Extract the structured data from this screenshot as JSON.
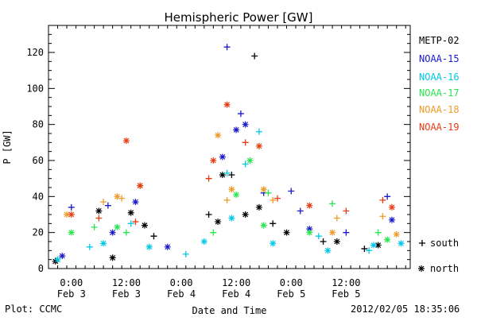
{
  "chart_data": {
    "type": "scatter",
    "title": "Hemispheric Power [GW]",
    "xlabel": "Date and Time",
    "ylabel": "P [GW]",
    "ylim": [
      0,
      135
    ],
    "y_ticks": [
      0,
      20,
      40,
      60,
      80,
      100,
      120
    ],
    "xlim": [
      "2012-02-02T19:00",
      "2012-02-06T02:00"
    ],
    "x_ticks": [
      {
        "time": "2012-02-03T00:00",
        "line1": "0:00",
        "line2": "Feb 3"
      },
      {
        "time": "2012-02-03T12:00",
        "line1": "12:00",
        "line2": "Feb 3"
      },
      {
        "time": "2012-02-04T00:00",
        "line1": "0:00",
        "line2": "Feb 4"
      },
      {
        "time": "2012-02-04T12:00",
        "line1": "12:00",
        "line2": "Feb 4"
      },
      {
        "time": "2012-02-05T00:00",
        "line1": "0:00",
        "line2": "Feb 5"
      },
      {
        "time": "2012-02-05T12:00",
        "line1": "12:00",
        "line2": "Feb 5"
      }
    ],
    "marker_legend": [
      {
        "symbol": "+",
        "label": "south"
      },
      {
        "symbol": "*",
        "label": "north"
      }
    ],
    "series": [
      {
        "name": "METP-02",
        "color": "#000000",
        "south": [
          [
            "2012-02-03T18:00",
            18
          ],
          [
            "2012-02-04T06:00",
            30
          ],
          [
            "2012-02-04T11:00",
            52
          ],
          [
            "2012-02-04T16:00",
            118
          ],
          [
            "2012-02-04T20:00",
            25
          ],
          [
            "2012-02-05T07:00",
            15
          ],
          [
            "2012-02-05T16:00",
            11
          ]
        ],
        "north": [
          [
            "2012-02-02T20:30",
            4
          ],
          [
            "2012-02-03T06:00",
            32
          ],
          [
            "2012-02-03T09:00",
            6
          ],
          [
            "2012-02-03T13:00",
            31
          ],
          [
            "2012-02-03T16:00",
            24
          ],
          [
            "2012-02-04T08:00",
            26
          ],
          [
            "2012-02-04T09:00",
            52
          ],
          [
            "2012-02-04T14:00",
            30
          ],
          [
            "2012-02-04T17:00",
            34
          ],
          [
            "2012-02-04T23:00",
            20
          ],
          [
            "2012-02-05T10:00",
            15
          ],
          [
            "2012-02-05T19:00",
            13
          ]
        ]
      },
      {
        "name": "NOAA-15",
        "color": "#1a1acc",
        "south": [
          [
            "2012-02-03T00:00",
            34
          ],
          [
            "2012-02-03T08:00",
            35
          ],
          [
            "2012-02-04T10:00",
            123
          ],
          [
            "2012-02-04T13:00",
            86
          ],
          [
            "2012-02-04T18:00",
            42
          ],
          [
            "2012-02-05T00:00",
            43
          ],
          [
            "2012-02-05T02:00",
            32
          ],
          [
            "2012-02-05T21:00",
            40
          ],
          [
            "2012-02-05T12:00",
            20
          ]
        ],
        "north": [
          [
            "2012-02-02T22:00",
            7
          ],
          [
            "2012-02-03T09:00",
            20
          ],
          [
            "2012-02-03T14:00",
            37
          ],
          [
            "2012-02-03T21:00",
            12
          ],
          [
            "2012-02-04T09:00",
            62
          ],
          [
            "2012-02-04T12:00",
            77
          ],
          [
            "2012-02-04T14:00",
            80
          ],
          [
            "2012-02-05T04:00",
            22
          ],
          [
            "2012-02-05T22:00",
            27
          ]
        ]
      },
      {
        "name": "NOAA-16",
        "color": "#00c8e6",
        "south": [
          [
            "2012-02-03T04:00",
            12
          ],
          [
            "2012-02-03T13:00",
            25
          ],
          [
            "2012-02-04T01:00",
            8
          ],
          [
            "2012-02-04T10:00",
            53
          ],
          [
            "2012-02-04T14:00",
            58
          ],
          [
            "2012-02-04T17:00",
            76
          ],
          [
            "2012-02-05T06:00",
            18
          ],
          [
            "2012-02-05T17:00",
            10
          ]
        ],
        "north": [
          [
            "2012-02-02T21:00",
            5
          ],
          [
            "2012-02-03T07:00",
            14
          ],
          [
            "2012-02-03T17:00",
            12
          ],
          [
            "2012-02-04T05:00",
            15
          ],
          [
            "2012-02-04T11:00",
            28
          ],
          [
            "2012-02-04T20:00",
            14
          ],
          [
            "2012-02-05T08:00",
            10
          ],
          [
            "2012-02-05T18:00",
            13
          ],
          [
            "2012-02-06T00:00",
            14
          ]
        ]
      },
      {
        "name": "NOAA-17",
        "color": "#28e650",
        "south": [
          [
            "2012-02-03T05:00",
            23
          ],
          [
            "2012-02-03T12:00",
            20
          ],
          [
            "2012-02-04T07:00",
            20
          ],
          [
            "2012-02-04T19:00",
            42
          ],
          [
            "2012-02-05T09:00",
            36
          ],
          [
            "2012-02-05T19:00",
            20
          ]
        ],
        "north": [
          [
            "2012-02-03T00:00",
            20
          ],
          [
            "2012-02-03T10:00",
            23
          ],
          [
            "2012-02-04T12:00",
            41
          ],
          [
            "2012-02-04T15:00",
            60
          ],
          [
            "2012-02-04T18:00",
            24
          ],
          [
            "2012-02-05T04:00",
            20
          ],
          [
            "2012-02-05T21:00",
            16
          ]
        ]
      },
      {
        "name": "NOAA-18",
        "color": "#f09a28",
        "south": [
          [
            "2012-02-03T07:00",
            37
          ],
          [
            "2012-02-03T11:00",
            39
          ],
          [
            "2012-02-04T10:00",
            38
          ],
          [
            "2012-02-04T20:00",
            38
          ],
          [
            "2012-02-05T10:00",
            28
          ],
          [
            "2012-02-05T20:00",
            29
          ]
        ],
        "north": [
          [
            "2012-02-02T23:00",
            30
          ],
          [
            "2012-02-03T10:00",
            40
          ],
          [
            "2012-02-03T15:00",
            46
          ],
          [
            "2012-02-04T08:00",
            74
          ],
          [
            "2012-02-04T11:00",
            44
          ],
          [
            "2012-02-04T18:00",
            44
          ],
          [
            "2012-02-05T09:00",
            20
          ],
          [
            "2012-02-05T23:00",
            19
          ]
        ]
      },
      {
        "name": "NOAA-19",
        "color": "#e63c14",
        "south": [
          [
            "2012-02-03T06:00",
            28
          ],
          [
            "2012-02-03T14:00",
            26
          ],
          [
            "2012-02-04T06:00",
            50
          ],
          [
            "2012-02-04T14:00",
            70
          ],
          [
            "2012-02-04T21:00",
            39
          ],
          [
            "2012-02-05T12:00",
            32
          ],
          [
            "2012-02-05T20:00",
            38
          ]
        ],
        "north": [
          [
            "2012-02-03T00:00",
            30
          ],
          [
            "2012-02-03T12:00",
            71
          ],
          [
            "2012-02-03T15:00",
            46
          ],
          [
            "2012-02-04T07:00",
            60
          ],
          [
            "2012-02-04T10:00",
            91
          ],
          [
            "2012-02-04T17:00",
            68
          ],
          [
            "2012-02-05T04:00",
            35
          ],
          [
            "2012-02-05T22:00",
            34
          ]
        ]
      }
    ]
  },
  "footer": {
    "left": "Plot: CCMC",
    "right": "2012/02/05 18:35:06"
  }
}
